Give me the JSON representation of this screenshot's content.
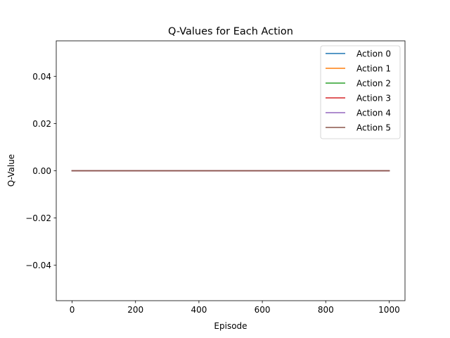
{
  "chart_data": {
    "type": "line",
    "title": "Q-Values for Each Action",
    "xlabel": "Episode",
    "ylabel": "Q-Value",
    "xlim": [
      -50,
      1050
    ],
    "ylim": [
      -0.055,
      0.055
    ],
    "x_ticks": [
      0,
      200,
      400,
      600,
      800,
      1000
    ],
    "x_tick_labels": [
      "0",
      "200",
      "400",
      "600",
      "800",
      "1000"
    ],
    "y_ticks": [
      -0.04,
      -0.02,
      0.0,
      0.02,
      0.04
    ],
    "y_tick_labels": [
      "−0.04",
      "−0.02",
      "0.00",
      "0.02",
      "0.04"
    ],
    "grid": false,
    "legend_position": "top-right",
    "series": [
      {
        "name": "Action 0",
        "color": "#1f77b4",
        "x": [
          0,
          1000
        ],
        "y": [
          0,
          0
        ]
      },
      {
        "name": "Action 1",
        "color": "#ff7f0e",
        "x": [
          0,
          1000
        ],
        "y": [
          0,
          0
        ]
      },
      {
        "name": "Action 2",
        "color": "#2ca02c",
        "x": [
          0,
          1000
        ],
        "y": [
          0,
          0
        ]
      },
      {
        "name": "Action 3",
        "color": "#d62728",
        "x": [
          0,
          1000
        ],
        "y": [
          0,
          0
        ]
      },
      {
        "name": "Action 4",
        "color": "#9467bd",
        "x": [
          0,
          1000
        ],
        "y": [
          0,
          0
        ]
      },
      {
        "name": "Action 5",
        "color": "#8c564b",
        "x": [
          0,
          1000
        ],
        "y": [
          0,
          0
        ]
      }
    ]
  }
}
